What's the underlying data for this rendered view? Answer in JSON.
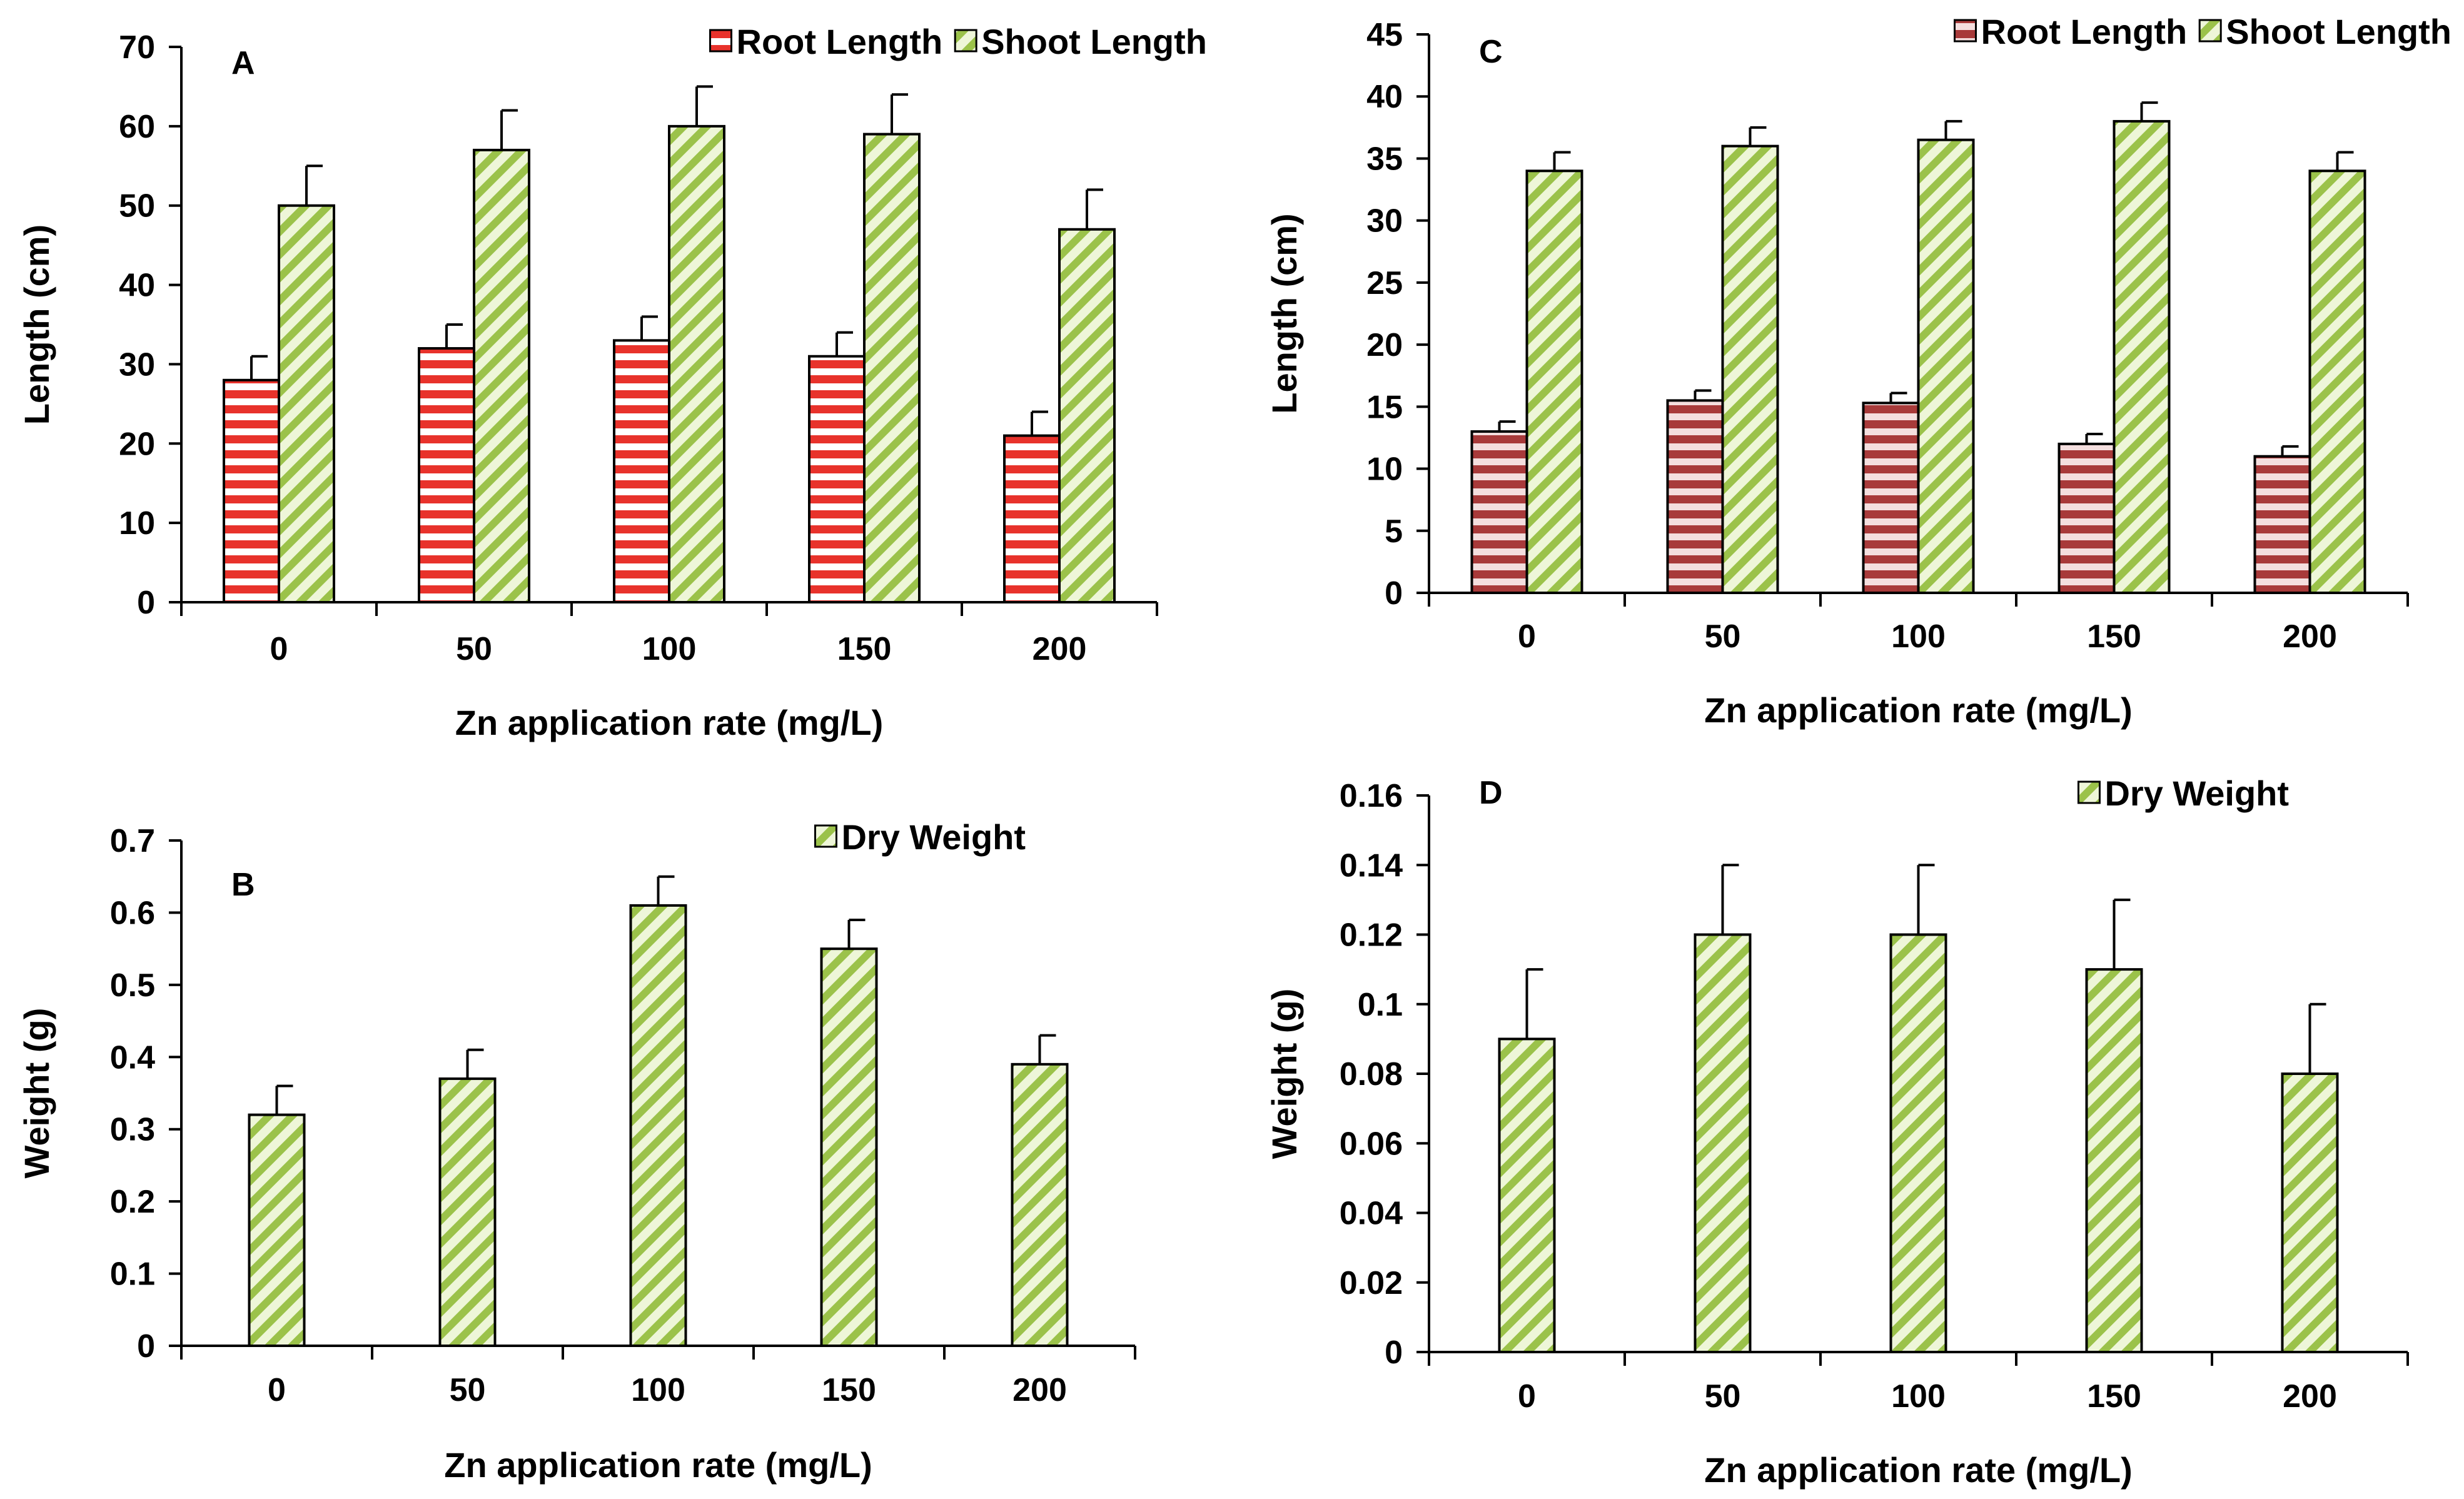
{
  "chart_data": [
    {
      "id": "A",
      "type": "bar",
      "panel_label": "A",
      "categories": [
        "0",
        "50",
        "100",
        "150",
        "200"
      ],
      "series": [
        {
          "name": "Root Length",
          "values": [
            28,
            32,
            33,
            31,
            21
          ],
          "errors": [
            3,
            3,
            3,
            3,
            3
          ],
          "pattern": "horizontal-stripes",
          "color": "#e8322b"
        },
        {
          "name": "Shoot Length",
          "values": [
            50,
            57,
            60,
            59,
            47
          ],
          "errors": [
            5,
            5,
            5,
            5,
            5
          ],
          "pattern": "diagonal-stripes",
          "color": "#9bc24a"
        }
      ],
      "yticks": [
        "0",
        "10",
        "20",
        "30",
        "40",
        "50",
        "60",
        "70"
      ],
      "ylim": [
        0,
        70
      ],
      "xlabel": "Zn application rate (mg/L)",
      "ylabel": "Length (cm)",
      "legend": "top-right"
    },
    {
      "id": "B",
      "type": "bar",
      "panel_label": "B",
      "categories": [
        "0",
        "50",
        "100",
        "150",
        "200"
      ],
      "series": [
        {
          "name": "Dry Weight",
          "values": [
            0.32,
            0.37,
            0.61,
            0.55,
            0.39
          ],
          "errors": [
            0.04,
            0.04,
            0.04,
            0.04,
            0.04
          ],
          "pattern": "diagonal-stripes",
          "color": "#9bc24a"
        }
      ],
      "yticks": [
        "0",
        "0.1",
        "0.2",
        "0.3",
        "0.4",
        "0.5",
        "0.6",
        "0.7"
      ],
      "ylim": [
        0,
        0.7
      ],
      "xlabel": "Zn application rate (mg/L)",
      "ylabel": "Weight (g)",
      "legend": "top-right"
    },
    {
      "id": "C",
      "type": "bar",
      "panel_label": "C",
      "categories": [
        "0",
        "50",
        "100",
        "150",
        "200"
      ],
      "series": [
        {
          "name": "Root Length",
          "values": [
            13,
            15.5,
            15.3,
            12,
            11
          ],
          "errors": [
            0.8,
            0.8,
            0.8,
            0.8,
            0.8
          ],
          "pattern": "horizontal-stripes",
          "color": "#a83a3a"
        },
        {
          "name": "Shoot Length",
          "values": [
            34,
            36,
            36.5,
            38,
            34
          ],
          "errors": [
            1.5,
            1.5,
            1.5,
            1.5,
            1.5
          ],
          "pattern": "diagonal-stripes",
          "color": "#9bc24a"
        }
      ],
      "yticks": [
        "0",
        "5",
        "10",
        "15",
        "20",
        "25",
        "30",
        "35",
        "40",
        "45"
      ],
      "ylim": [
        0,
        45
      ],
      "xlabel": "Zn application rate (mg/L)",
      "ylabel": "Length (cm)",
      "legend": "top-right"
    },
    {
      "id": "D",
      "type": "bar",
      "panel_label": "D",
      "categories": [
        "0",
        "50",
        "100",
        "150",
        "200"
      ],
      "series": [
        {
          "name": "Dry Weight",
          "values": [
            0.09,
            0.12,
            0.12,
            0.11,
            0.08
          ],
          "errors": [
            0.02,
            0.02,
            0.02,
            0.02,
            0.02
          ],
          "pattern": "diagonal-stripes",
          "color": "#9bc24a"
        }
      ],
      "yticks": [
        "0",
        "0.02",
        "0.04",
        "0.06",
        "0.08",
        "0.1",
        "0.12",
        "0.14",
        "0.16"
      ],
      "ylim": [
        0,
        0.16
      ],
      "xlabel": "Zn application rate (mg/L)",
      "ylabel": "Weight (g)",
      "legend": "top-right"
    }
  ]
}
